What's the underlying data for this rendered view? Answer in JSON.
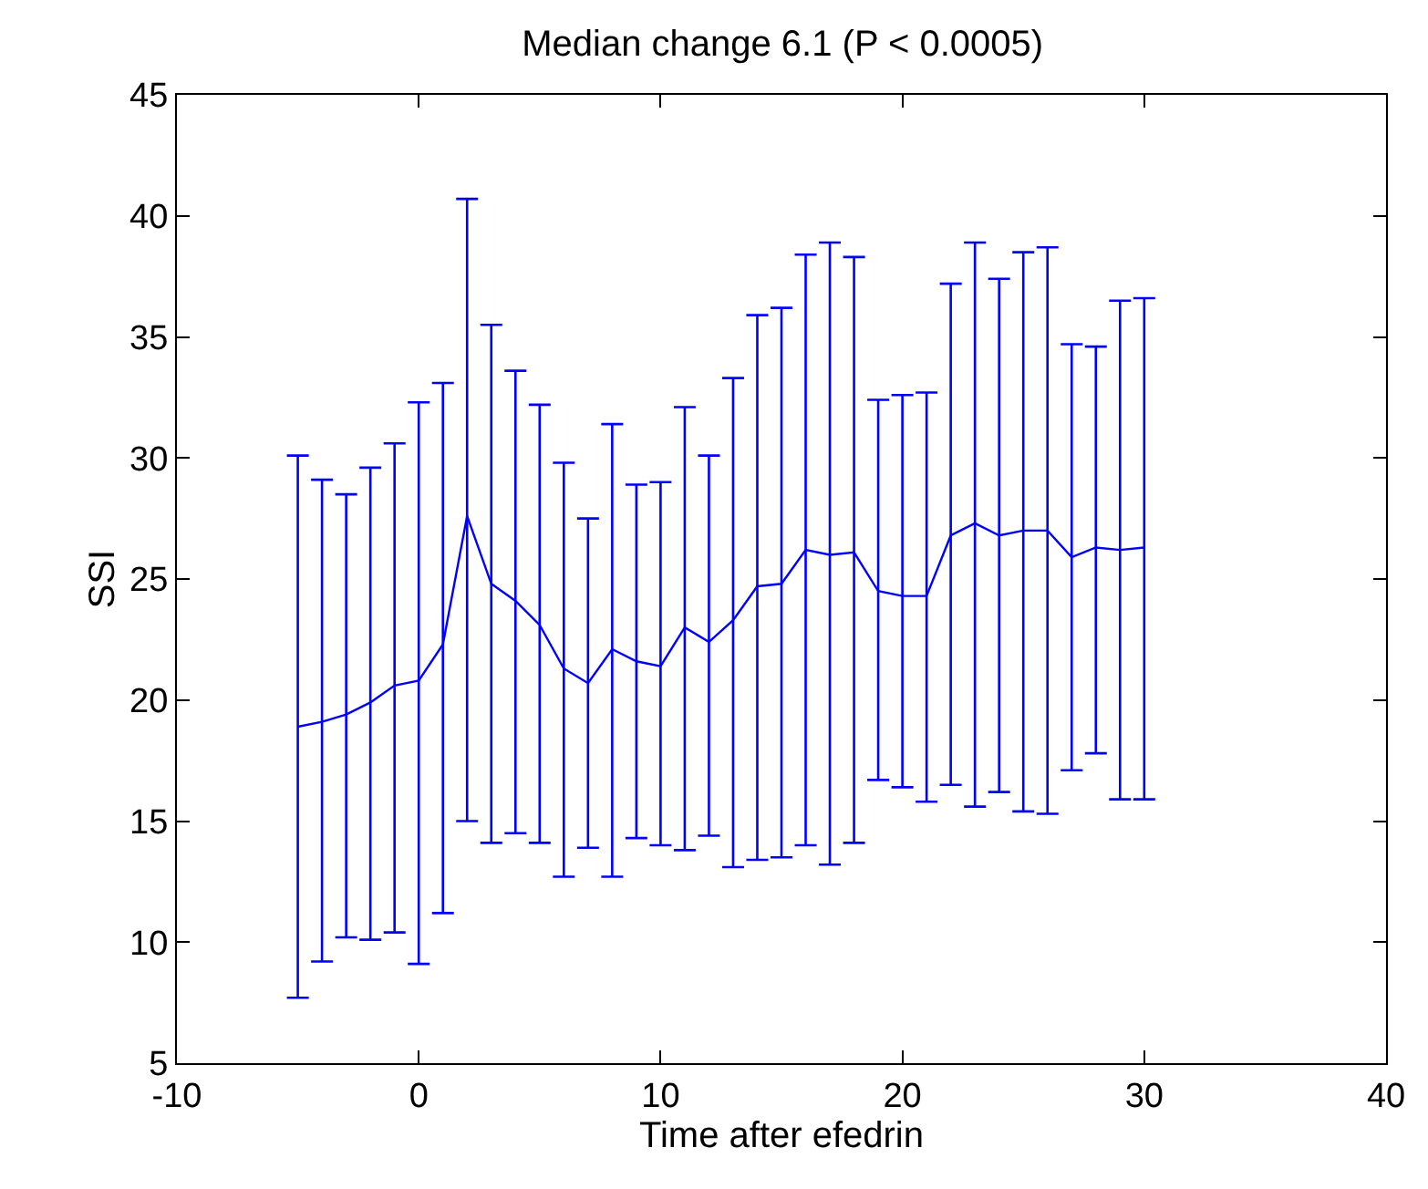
{
  "chart_data": {
    "type": "line",
    "title": "Median change 6.1 (P < 0.0005)",
    "xlabel": "Time after efedrin",
    "ylabel": "SSI",
    "x": [
      -5,
      -4,
      -3,
      -2,
      -1,
      0,
      1,
      2,
      3,
      4,
      5,
      6,
      7,
      8,
      9,
      10,
      11,
      12,
      13,
      14,
      15,
      16,
      17,
      18,
      19,
      20,
      21,
      22,
      23,
      24,
      25,
      26,
      27,
      28,
      29,
      30
    ],
    "series": [
      {
        "color": "#0000ff",
        "values": [
          18.9,
          19.1,
          19.4,
          19.9,
          20.6,
          20.8,
          22.3,
          27.6,
          24.8,
          24.1,
          23.1,
          21.3,
          20.7,
          22.1,
          21.6,
          21.4,
          23.0,
          22.4,
          23.3,
          24.7,
          24.8,
          26.2,
          26.0,
          26.1,
          24.5,
          24.3,
          24.3,
          26.8,
          27.3,
          26.8,
          27.0,
          27.0,
          25.9,
          26.3,
          26.2,
          26.3
        ],
        "errors": [
          [
            7.7,
            30.1
          ],
          [
            9.2,
            29.1
          ],
          [
            10.2,
            28.5
          ],
          [
            10.1,
            29.6
          ],
          [
            10.4,
            30.6
          ],
          [
            9.1,
            32.3
          ],
          [
            11.2,
            33.1
          ],
          [
            15.0,
            40.7
          ],
          [
            14.1,
            35.5
          ],
          [
            14.5,
            33.6
          ],
          [
            14.1,
            32.2
          ],
          [
            12.7,
            29.8
          ],
          [
            13.9,
            27.5
          ],
          [
            12.7,
            31.4
          ],
          [
            14.3,
            28.9
          ],
          [
            14.0,
            29.0
          ],
          [
            13.8,
            32.1
          ],
          [
            14.4,
            30.1
          ],
          [
            13.1,
            33.3
          ],
          [
            13.4,
            35.9
          ],
          [
            13.5,
            36.2
          ],
          [
            14.0,
            38.4
          ],
          [
            13.2,
            38.9
          ],
          [
            14.1,
            38.3
          ],
          [
            16.7,
            32.4
          ],
          [
            16.4,
            32.6
          ],
          [
            15.8,
            32.7
          ],
          [
            16.5,
            37.2
          ],
          [
            15.6,
            38.9
          ],
          [
            16.2,
            37.4
          ],
          [
            15.4,
            38.5
          ],
          [
            15.3,
            38.7
          ],
          [
            17.1,
            34.7
          ],
          [
            17.8,
            34.6
          ],
          [
            15.9,
            36.5
          ],
          [
            15.9,
            36.6
          ]
        ]
      }
    ],
    "xlim": [
      -10,
      40
    ],
    "xticks": [
      -10,
      0,
      10,
      20,
      30,
      40
    ],
    "ylim": [
      5,
      45
    ],
    "yticks": [
      5,
      10,
      15,
      20,
      25,
      30,
      35,
      40,
      45
    ],
    "marker": "none",
    "line_style": "solid"
  }
}
